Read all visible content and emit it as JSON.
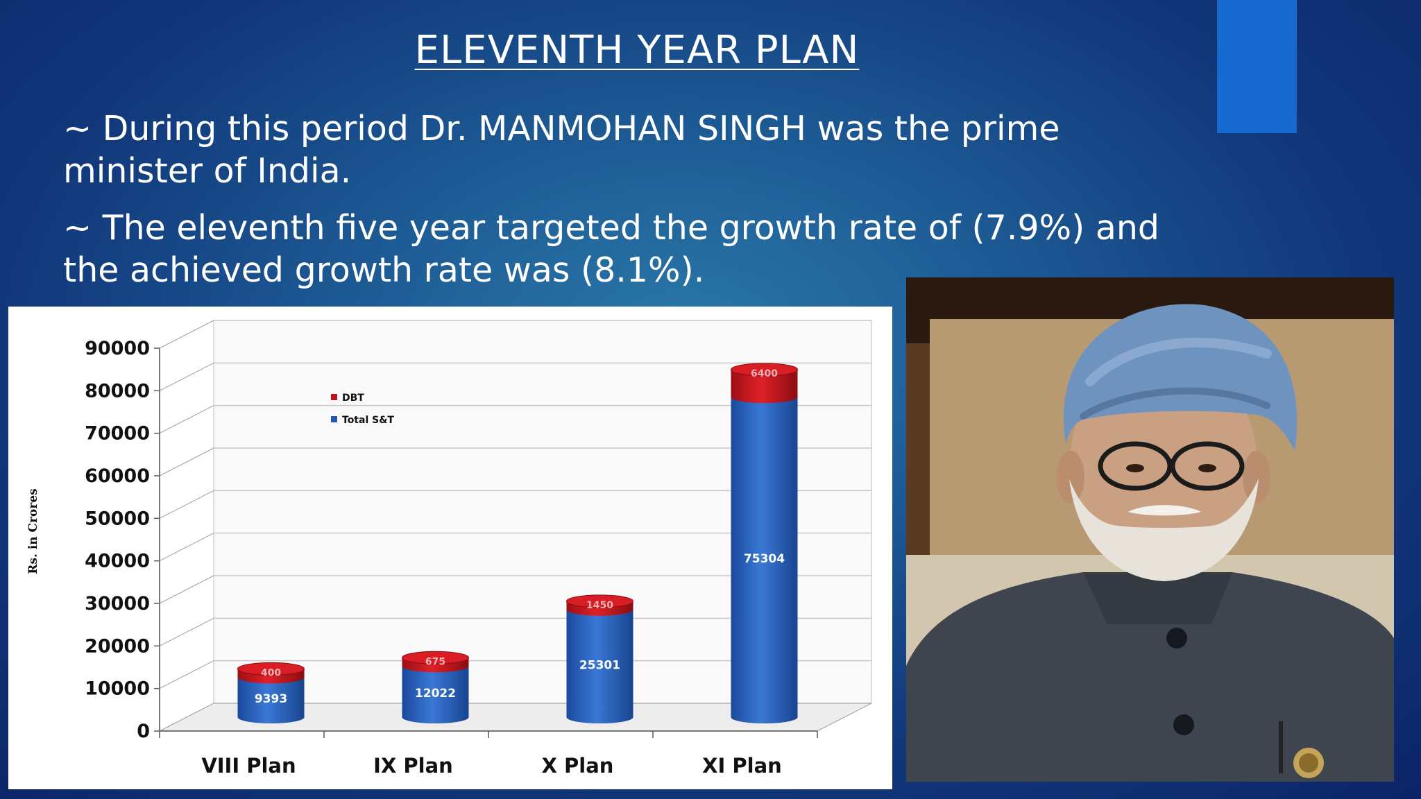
{
  "slide": {
    "title": "ELEVENTH YEAR PLAN",
    "bullets": [
      "~ During this period Dr. MANMOHAN SINGH was the prime minister of India.",
      "~ The eleventh five year targeted the growth rate of (7.9%) and the achieved growth rate was (8.1%)."
    ]
  },
  "colors": {
    "accent": "#1769cf",
    "total_series": "#2158b6",
    "dbt_series": "#c0141a"
  },
  "chart_data": {
    "type": "bar",
    "stacked": true,
    "categories": [
      "VIII Plan",
      "IX Plan",
      "X Plan",
      "XI Plan"
    ],
    "series": [
      {
        "name": "Total S&T",
        "values": [
          9393,
          12022,
          25301,
          75304
        ],
        "labels": [
          "9393",
          "12022",
          "25301",
          "75304"
        ]
      },
      {
        "name": "DBT",
        "values": [
          400,
          675,
          1450,
          6400
        ],
        "labels": [
          "400",
          "675",
          "1450",
          "6400"
        ]
      }
    ],
    "ylabel": "Rs. in Crores",
    "xlabel": "",
    "ylim": [
      0,
      90000
    ],
    "yticks": [
      0,
      10000,
      20000,
      30000,
      40000,
      50000,
      60000,
      70000,
      80000,
      90000
    ],
    "ytick_labels": [
      "0",
      "10000",
      "20000",
      "30000",
      "40000",
      "50000",
      "60000",
      "70000",
      "80000",
      "90000"
    ],
    "legend": [
      "DBT",
      "Total S&T"
    ],
    "legend_position": "top-left",
    "grid": true
  }
}
